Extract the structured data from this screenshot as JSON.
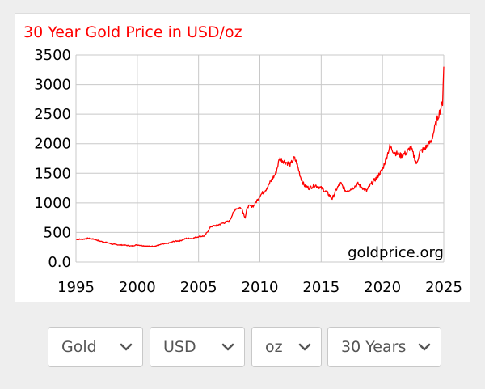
{
  "chart_data": {
    "type": "line",
    "title": "30 Year Gold Price in USD/oz",
    "watermark": "goldprice.org",
    "title_color": "#ff0000",
    "line_color": "#ff0000",
    "grid": true,
    "xlim": [
      1995,
      2025
    ],
    "ylim": [
      0,
      3500
    ],
    "x_ticks": [
      1995,
      2000,
      2005,
      2010,
      2015,
      2020,
      2025
    ],
    "x_tick_labels": [
      "1995",
      "2000",
      "2005",
      "2010",
      "2015",
      "2020",
      "2025"
    ],
    "y_ticks": [
      0,
      500,
      1000,
      1500,
      2000,
      2500,
      3000,
      3500
    ],
    "y_tick_labels": [
      "0.0",
      "500",
      "1000",
      "1500",
      "2000",
      "2500",
      "3000",
      "3500"
    ],
    "series": [
      {
        "x": [
          1995.0,
          1995.5,
          1996.0,
          1996.5,
          1997.0,
          1997.5,
          1998.0,
          1998.5,
          1999.0,
          1999.5,
          2000.0,
          2000.5,
          2001.0,
          2001.5,
          2002.0,
          2002.5,
          2003.0,
          2003.5,
          2004.0,
          2004.5,
          2005.0,
          2005.5,
          2006.0,
          2006.5,
          2007.0,
          2007.5,
          2008.0,
          2008.5,
          2008.8,
          2009.0,
          2009.5,
          2010.0,
          2010.5,
          2011.0,
          2011.3,
          2011.6,
          2012.0,
          2012.5,
          2012.8,
          2013.0,
          2013.3,
          2013.6,
          2014.0,
          2014.5,
          2015.0,
          2015.5,
          2015.9,
          2016.3,
          2016.6,
          2017.0,
          2017.5,
          2018.0,
          2018.7,
          2019.0,
          2019.5,
          2020.0,
          2020.6,
          2021.0,
          2021.5,
          2022.0,
          2022.3,
          2022.8,
          2023.0,
          2023.5,
          2024.0,
          2024.3,
          2024.6,
          2024.9,
          2025.0
        ],
        "values": [
          385,
          385,
          400,
          385,
          350,
          330,
          300,
          290,
          285,
          270,
          290,
          275,
          265,
          270,
          300,
          315,
          350,
          360,
          400,
          400,
          430,
          440,
          600,
          620,
          660,
          690,
          900,
          920,
          750,
          940,
          950,
          1120,
          1230,
          1400,
          1500,
          1750,
          1700,
          1650,
          1760,
          1680,
          1450,
          1300,
          1250,
          1300,
          1250,
          1170,
          1070,
          1250,
          1330,
          1200,
          1240,
          1320,
          1200,
          1300,
          1420,
          1560,
          1950,
          1850,
          1800,
          1850,
          1950,
          1650,
          1850,
          1930,
          2050,
          2300,
          2500,
          2700,
          3300
        ]
      }
    ]
  },
  "controls": {
    "metal": "Gold",
    "currency": "USD",
    "unit": "oz",
    "period": "30 Years"
  },
  "icons": {
    "select_arrow": "chevron-down-icon"
  }
}
